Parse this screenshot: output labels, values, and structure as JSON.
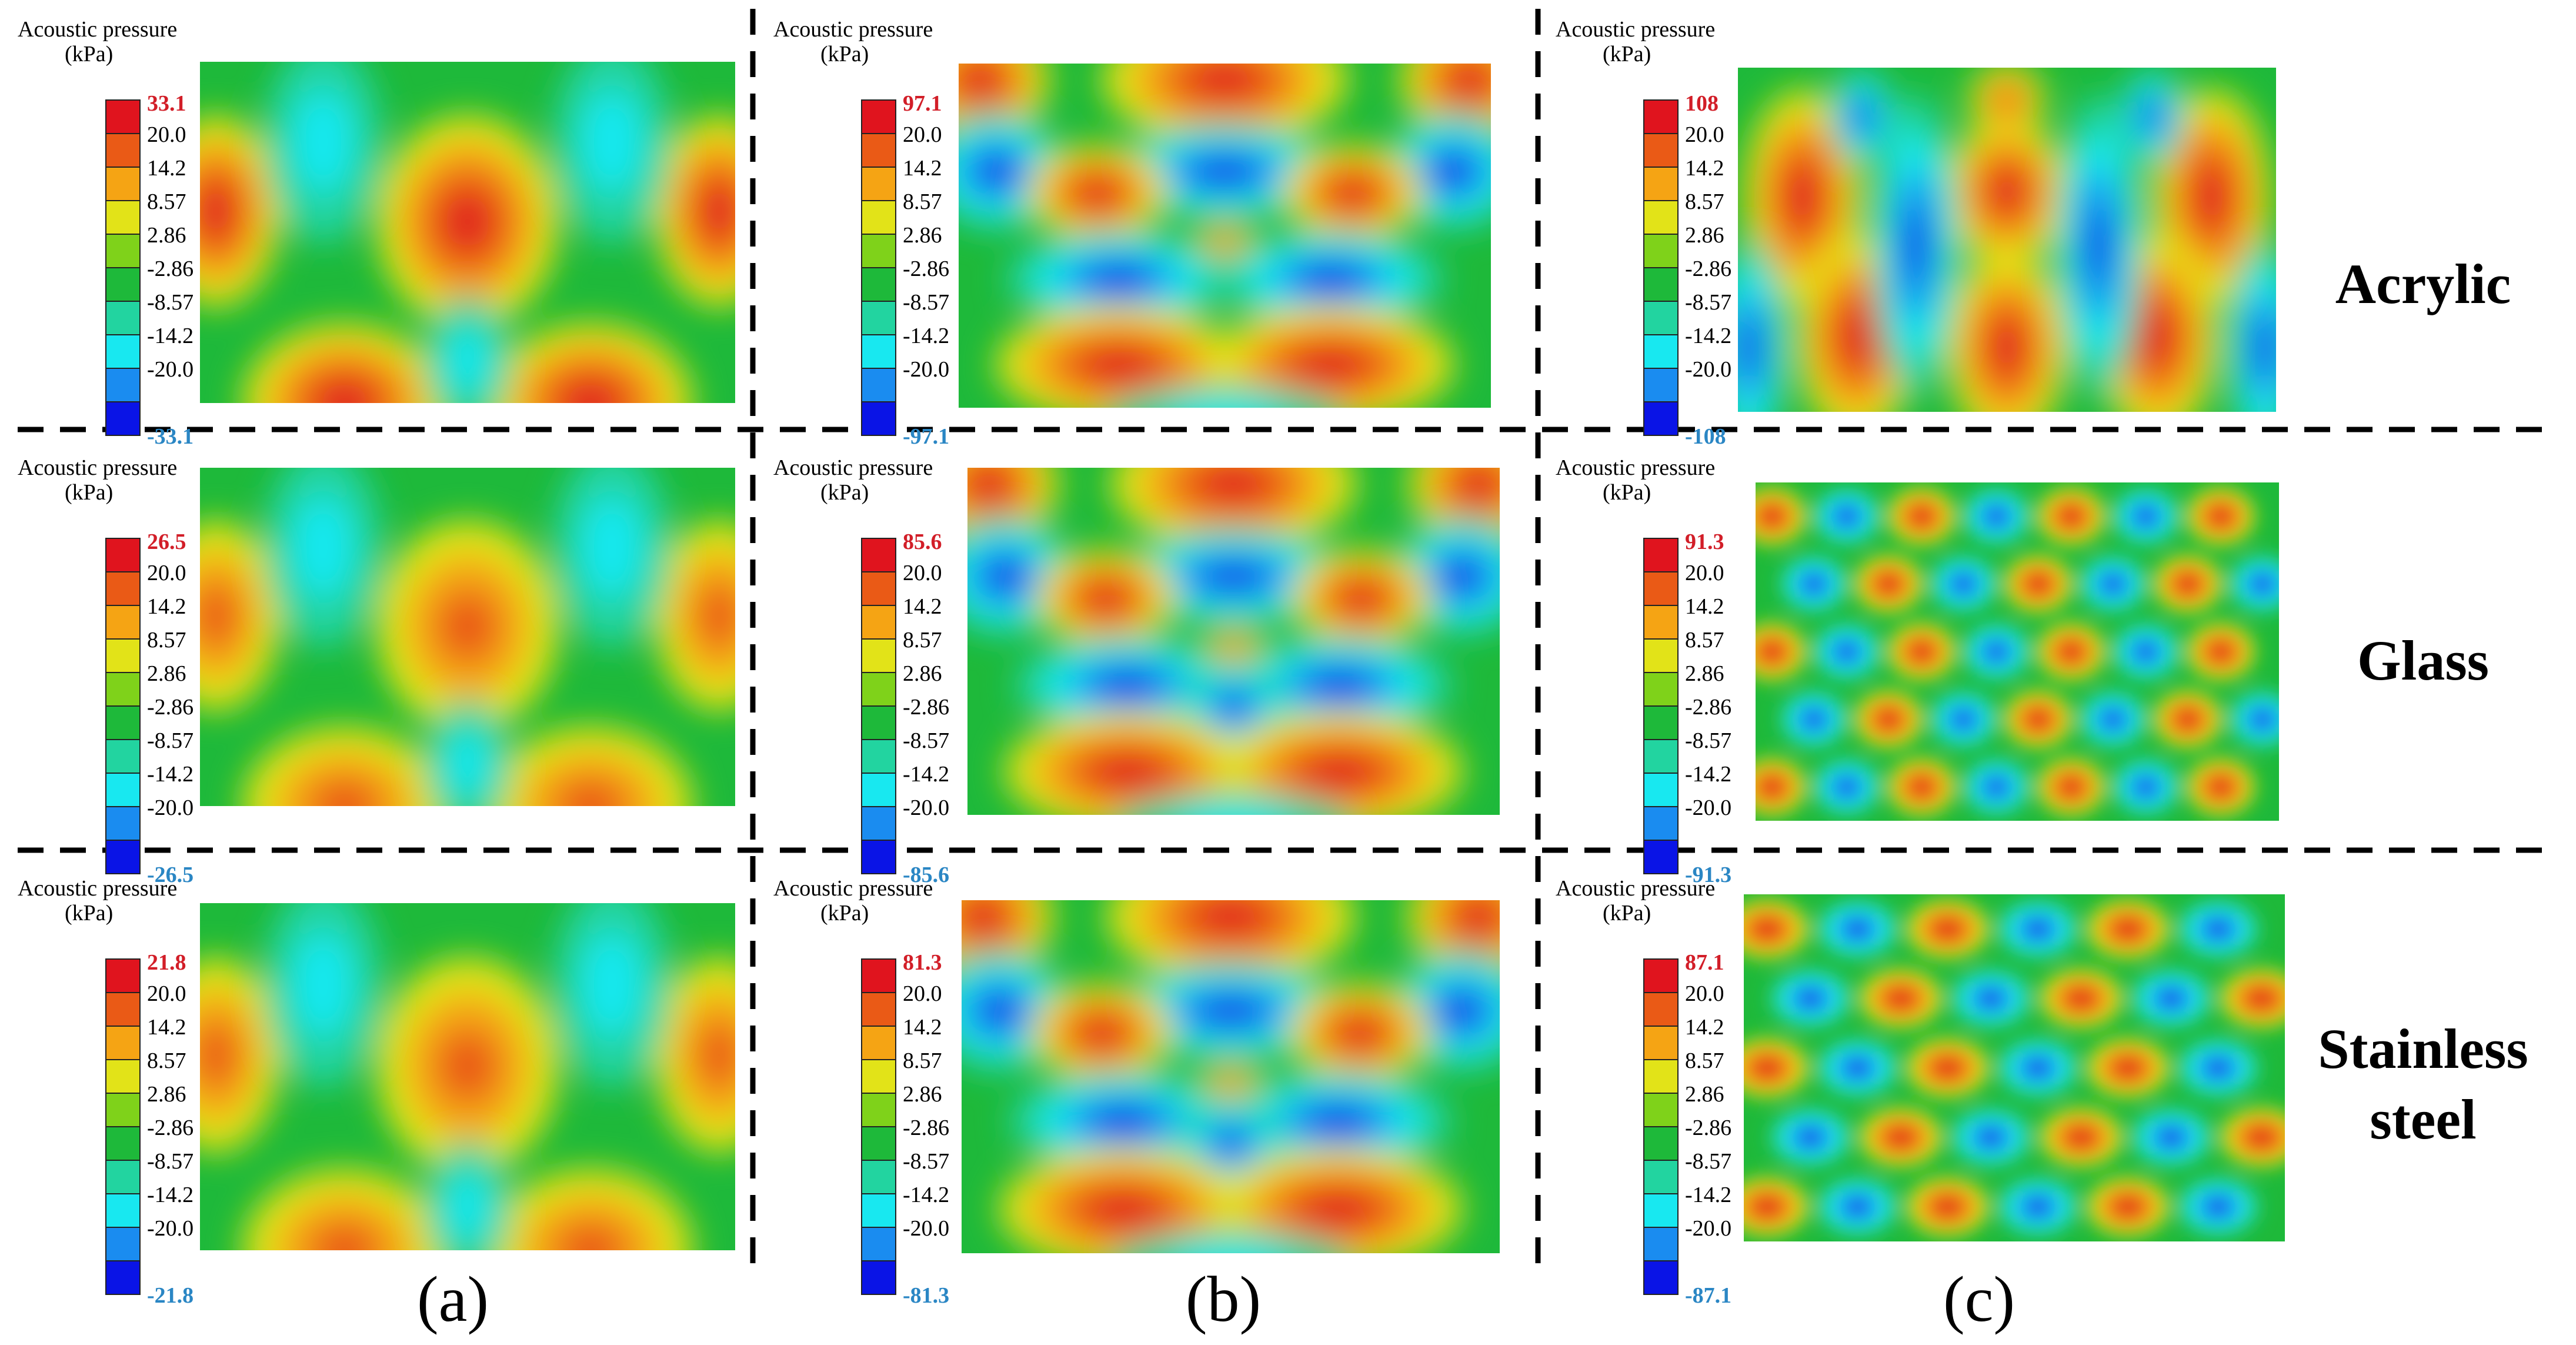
{
  "figure": {
    "legend_title_line1": "Acoustic pressure",
    "legend_title_line2": "(kPa)",
    "color_scale": [
      "#0a14e6",
      "#1a8cf0",
      "#18e8f0",
      "#22d4a0",
      "#1eb93a",
      "#7fd21a",
      "#e2e318",
      "#f5a414",
      "#ea5a16",
      "#e0141e"
    ],
    "inner_tick_labels": [
      "20.0",
      "14.2",
      "8.57",
      "2.86",
      "-2.86",
      "-8.57",
      "-14.2",
      "-20.0"
    ],
    "max_label_color": "#d21e28",
    "min_label_color": "#2a86c4",
    "column_labels": [
      "(a)",
      "(b)",
      "(c)"
    ],
    "row_labels": [
      [
        "Acrylic"
      ],
      [
        "Glass"
      ],
      [
        "Stainless",
        "steel"
      ]
    ],
    "panels": [
      {
        "row": 0,
        "col": 0,
        "max": "33.1",
        "min": "-33.1"
      },
      {
        "row": 0,
        "col": 1,
        "max": "97.1",
        "min": "-97.1"
      },
      {
        "row": 0,
        "col": 2,
        "max": "108",
        "min": "-108"
      },
      {
        "row": 1,
        "col": 0,
        "max": "26.5",
        "min": "-26.5"
      },
      {
        "row": 1,
        "col": 1,
        "max": "85.6",
        "min": "-85.6"
      },
      {
        "row": 1,
        "col": 2,
        "max": "91.3",
        "min": "-91.3"
      },
      {
        "row": 2,
        "col": 0,
        "max": "21.8",
        "min": "-21.8"
      },
      {
        "row": 2,
        "col": 1,
        "max": "81.3",
        "min": "-81.3"
      },
      {
        "row": 2,
        "col": 2,
        "max": "87.1",
        "min": "-87.1"
      }
    ]
  }
}
